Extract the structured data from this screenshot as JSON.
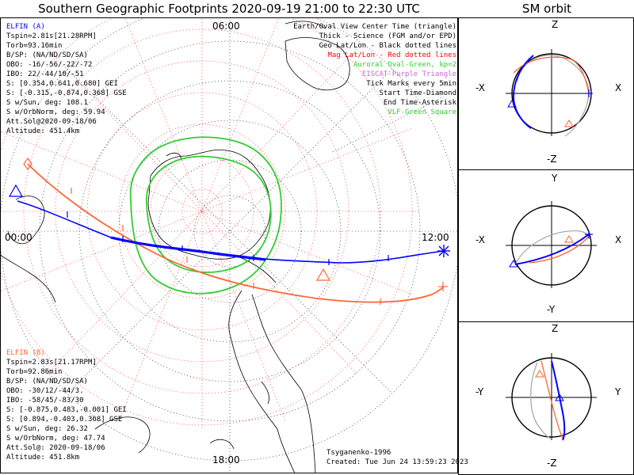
{
  "title": "Southern Geographic Footprints 2020-09-19 21:00 to 22:30 UTC",
  "sm_title": "SM orbit",
  "elfin_a": {
    "name": "ELFIN (A)",
    "lines": [
      "Tspin=2.81s[21.28RPM]",
      "Torb=93.16min",
      "B/SP: (NA/ND/SD/SA)",
      "OBO: -16/-56/-22/-72",
      "IBO: 22/-44/10/-51",
      "S: [0.354,0.641,0.680] GEI",
      "S: [-0.315,-0.874,0.368] GSE",
      "S w/Sun, deg: 108.1",
      "S w/OrbNorm, deg: 59.94",
      "Att.Sol@2020-09-18/06",
      "Altitude: 451.4km"
    ]
  },
  "elfin_b": {
    "name": "ELFIN (B)",
    "lines": [
      "Tspin=2.83s[21.17RPM]",
      "Torb=92.86min",
      "B/SP: (NA/ND/SD/SA)",
      "OBO: -30/12/-44/3.",
      "IBO: -58/45/-83/30",
      "S: [-0.875,0.483,-0.001] GEI",
      "S: [0.894,-0.403,0.368] GSE",
      "S w/Sun, deg: 26.32",
      "S w/OrbNorm, deg: 47.74",
      "Att.Sol@: 2020-09-18/06",
      "Altitude: 451.8km"
    ]
  },
  "legend": [
    {
      "text": "Earth/Oval View Center Time (triangle)",
      "color": "#000000"
    },
    {
      "text": "Thick - Science (FGM and/or EPD)",
      "color": "#000000"
    },
    {
      "text": "Geo Lat/Lon - Black dotted lines",
      "color": "#000000"
    },
    {
      "text": "Mag Lat/Lon - Red dotted lines",
      "color": "#ff0000"
    },
    {
      "text": "Auroral Oval-Green, kp=2",
      "color": "#33cc33"
    },
    {
      "text": "EISCAT-Purple Triangle",
      "color": "#cc66cc"
    },
    {
      "text": "Tick Marks every 5min",
      "color": "#000000"
    },
    {
      "text": "Start Time-Diamond",
      "color": "#000000"
    },
    {
      "text": "End Time-Asterisk",
      "color": "#000000"
    },
    {
      "text": "VLF-Green Square",
      "color": "#33cc33"
    }
  ],
  "mlt_labels": {
    "top": "06:00",
    "left": "00:00",
    "right": "12:00",
    "bottom": "18:00"
  },
  "footer": {
    "model": "Tsyganenko-1996",
    "created": "Created: Tue Jun 24 13:59:23 2023"
  },
  "sm_panels": [
    {
      "top": "Z",
      "bottom": "-Z",
      "left": "-X",
      "right": "X"
    },
    {
      "top": "Y",
      "bottom": "-Y",
      "left": "-X",
      "right": "X"
    },
    {
      "top": "Z",
      "bottom": "-Z",
      "left": "-Y",
      "right": "Y"
    }
  ],
  "colors": {
    "elfin_a": "#0000ff",
    "elfin_b": "#ff6633",
    "oval": "#33cc33",
    "mag_grid": "#ff0000",
    "frame": "#000000"
  }
}
